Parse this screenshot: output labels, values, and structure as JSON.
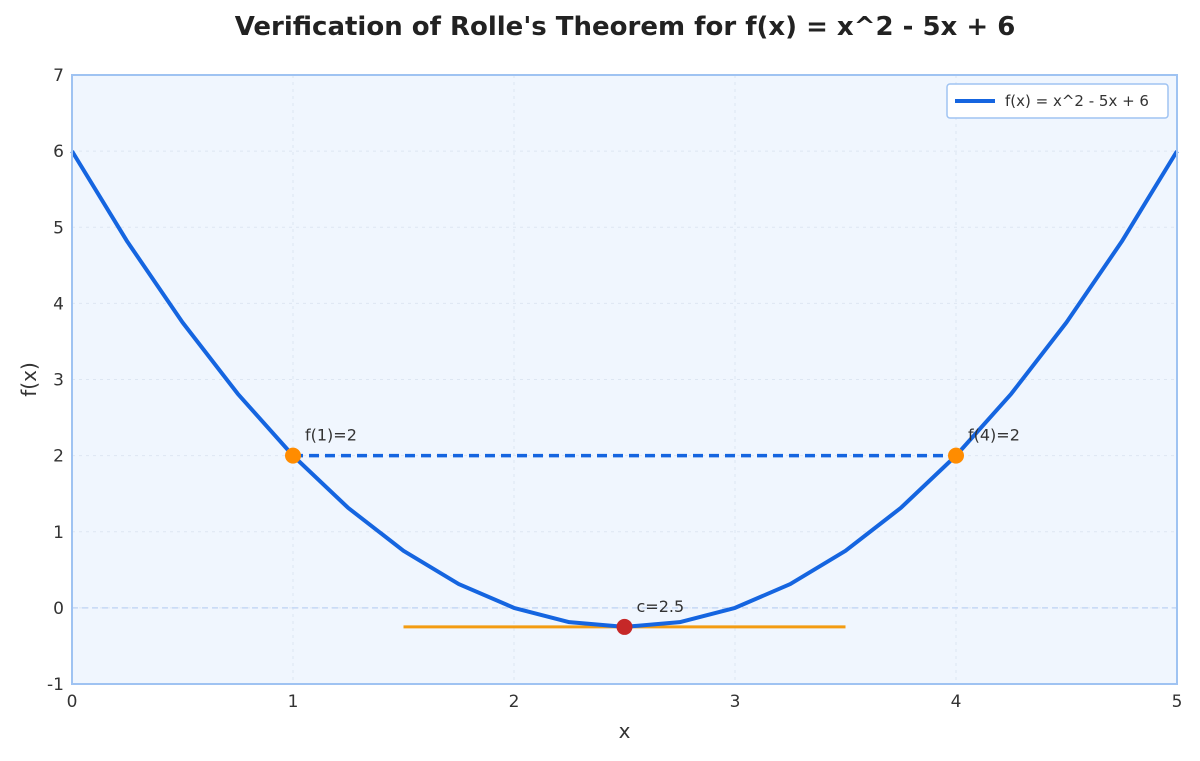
{
  "chart_data": {
    "type": "line",
    "title": "Verification of Rolle's Theorem for f(x) = x^2 - 5x + 6",
    "xlabel": "x",
    "ylabel": "f(x)",
    "xlim": [
      0,
      5
    ],
    "ylim": [
      -1,
      7
    ],
    "x_ticks": [
      0,
      1,
      2,
      3,
      4,
      5
    ],
    "y_ticks": [
      -1,
      0,
      1,
      2,
      3,
      4,
      5,
      6,
      7
    ],
    "grid": true,
    "legend_position": "top-right",
    "series": [
      {
        "name": "f(x) = x^2 - 5x + 6",
        "color": "#1565e0",
        "x": [
          0,
          0.25,
          0.5,
          0.75,
          1,
          1.25,
          1.5,
          1.75,
          2,
          2.25,
          2.5,
          2.75,
          3,
          3.25,
          3.5,
          3.75,
          4,
          4.25,
          4.5,
          4.75,
          5
        ],
        "y": [
          6,
          4.8125,
          3.75,
          2.8125,
          2,
          1.3125,
          0.75,
          0.3125,
          0,
          -0.1875,
          -0.25,
          -0.1875,
          0,
          0.3125,
          0.75,
          1.3125,
          2,
          2.8125,
          3.75,
          4.8125,
          6
        ]
      }
    ],
    "reference_lines": {
      "secant": {
        "x": [
          1,
          4
        ],
        "y": [
          2,
          2
        ],
        "color": "#1565e0",
        "style": "dashed"
      },
      "tangent": {
        "x": [
          1.5,
          3.5
        ],
        "y": [
          -0.25,
          -0.25
        ],
        "color": "#f39c12",
        "style": "solid"
      },
      "zero_line": {
        "y": 0,
        "color": "#c5d8f5",
        "style": "dashed"
      }
    },
    "points": [
      {
        "x": 1,
        "y": 2,
        "label": "f(1)=2",
        "color": "#ff8c00"
      },
      {
        "x": 4,
        "y": 2,
        "label": "f(4)=2",
        "color": "#ff8c00"
      },
      {
        "x": 2.5,
        "y": -0.25,
        "label": "c=2.5",
        "color": "#c62828"
      }
    ]
  }
}
